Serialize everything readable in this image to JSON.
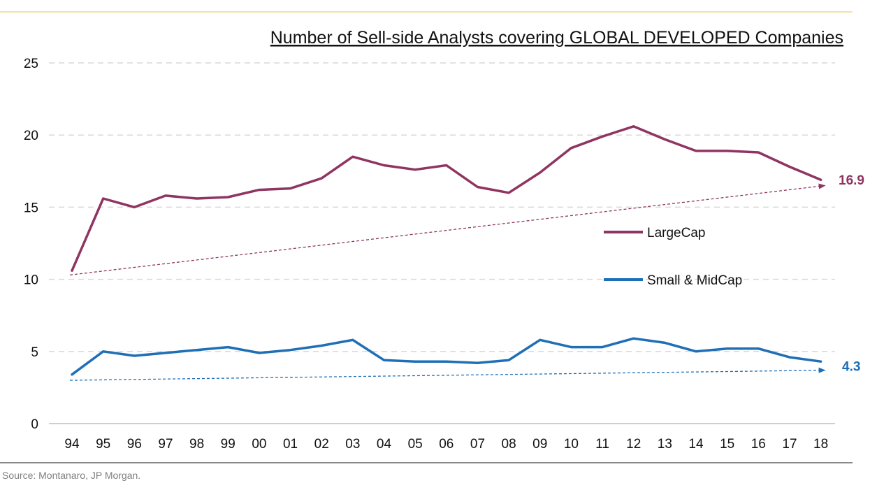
{
  "chart_data": {
    "type": "line",
    "title": "Number of Sell-side Analysts covering GLOBAL DEVELOPED Companies",
    "xlabel": "",
    "ylabel": "",
    "ylim": [
      0,
      25
    ],
    "yticks": [
      0,
      5,
      10,
      15,
      20,
      25
    ],
    "grid": true,
    "legend_placement": "center-right",
    "categories": [
      "94",
      "95",
      "96",
      "97",
      "98",
      "99",
      "00",
      "01",
      "02",
      "03",
      "04",
      "05",
      "06",
      "07",
      "08",
      "09",
      "10",
      "11",
      "12",
      "13",
      "14",
      "15",
      "16",
      "17",
      "18"
    ],
    "series": [
      {
        "name": "LargeCap",
        "color": "#8e3561",
        "values": [
          10.6,
          15.6,
          15.0,
          15.8,
          15.6,
          15.7,
          16.2,
          16.3,
          17.0,
          18.5,
          17.9,
          17.6,
          17.9,
          16.4,
          16.0,
          17.4,
          19.1,
          19.9,
          20.6,
          19.7,
          18.9,
          18.9,
          18.8,
          17.8,
          16.9
        ],
        "end_label": "16.9",
        "trend": {
          "start": 10.3,
          "end": 16.5
        }
      },
      {
        "name": "Small & MidCap",
        "color": "#1f6fb6",
        "values": [
          3.4,
          5.0,
          4.7,
          4.9,
          5.1,
          5.3,
          4.9,
          5.1,
          5.4,
          5.8,
          4.4,
          4.3,
          4.3,
          4.2,
          4.4,
          5.8,
          5.3,
          5.3,
          5.9,
          5.6,
          5.0,
          5.2,
          5.2,
          4.6,
          4.3
        ],
        "end_label": "4.3",
        "trend": {
          "start": 3.0,
          "end": 3.7
        }
      }
    ]
  },
  "source": "Source: Montanaro, JP Morgan.",
  "colors": {
    "top_rule": "#f0d98a",
    "grid": "#d9d9d9",
    "axis": "#bfbfbf"
  }
}
